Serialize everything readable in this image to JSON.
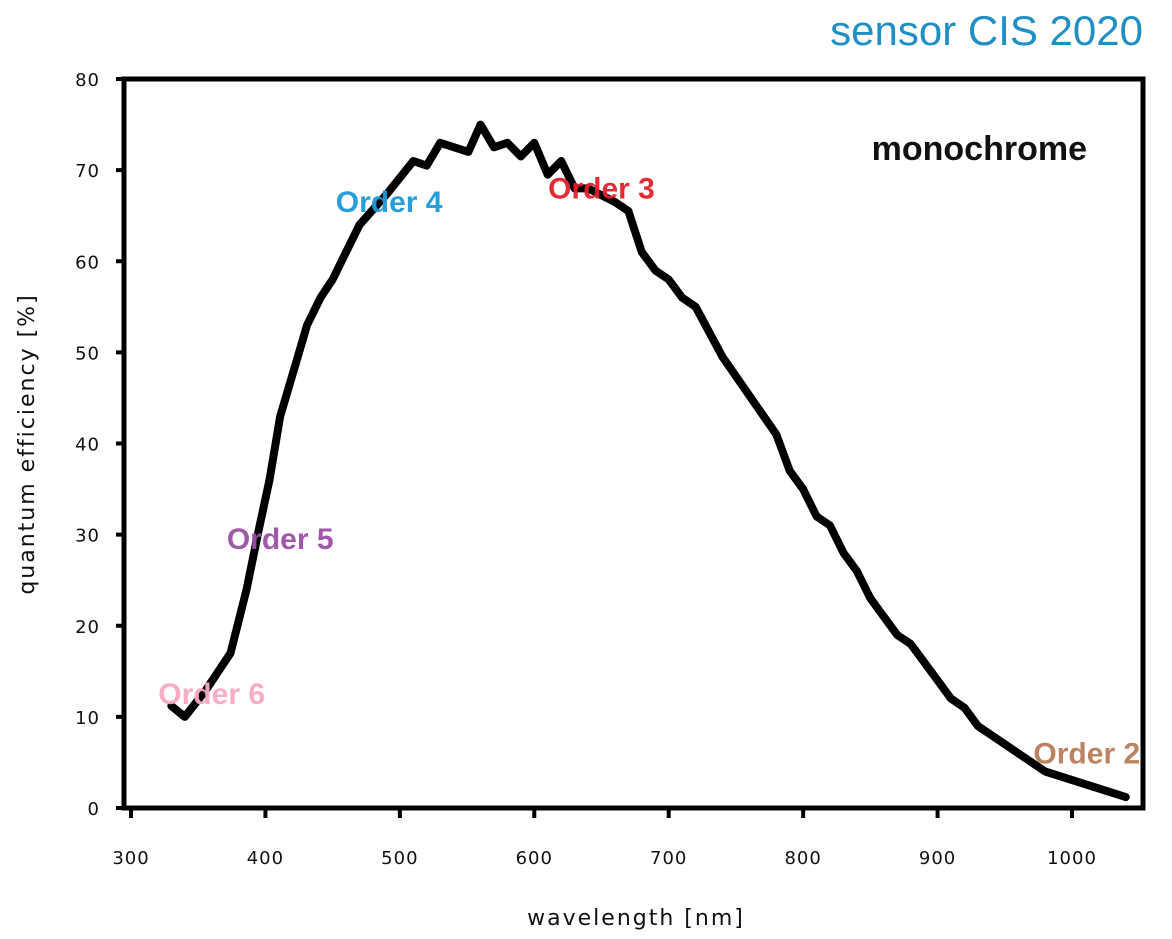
{
  "brand": {
    "text": "sensor CIS 2020",
    "color": "#1f8fc4"
  },
  "chart_data": {
    "type": "line",
    "title": "",
    "subtitle": "monochrome",
    "xlabel": "wavelength [nm]",
    "ylabel": "quantum efficiency [%]",
    "xlim": [
      300,
      1050
    ],
    "ylim": [
      0,
      80
    ],
    "xticks": [
      300,
      400,
      500,
      600,
      700,
      800,
      900,
      1000
    ],
    "yticks": [
      0,
      10,
      20,
      30,
      40,
      50,
      60,
      70,
      80
    ],
    "grid": false,
    "series": [
      {
        "name": "monochrome",
        "color": "#000000",
        "x": [
          330,
          340,
          356,
          374,
          386,
          395,
          403,
          411,
          421,
          431,
          441,
          450,
          470,
          491,
          510,
          520,
          530,
          551,
          560,
          570,
          580,
          590,
          600,
          610,
          620,
          630,
          640,
          660,
          670,
          680,
          690,
          700,
          710,
          720,
          740,
          780,
          790,
          800,
          810,
          820,
          830,
          840,
          850,
          870,
          880,
          900,
          910,
          920,
          930,
          950,
          970,
          980,
          1040
        ],
        "y": [
          11.2,
          10,
          13,
          17,
          24,
          30.5,
          36,
          43,
          48,
          53,
          56,
          58,
          64,
          67.5,
          71,
          70.5,
          73,
          72,
          75,
          72.5,
          73,
          71.5,
          73,
          69.5,
          71,
          68,
          68,
          66.5,
          65.5,
          61,
          59,
          58,
          56,
          55,
          49.5,
          41,
          37,
          35,
          32,
          31,
          28,
          26,
          23,
          19,
          18,
          14,
          12,
          11,
          9,
          7,
          5,
          4,
          1.2
        ]
      }
    ],
    "annotations": [
      {
        "text": "Order 6",
        "x": 360,
        "y": 12.5,
        "color": "#f7a8c4"
      },
      {
        "text": "Order 5",
        "x": 411,
        "y": 29.5,
        "color": "#9b4fa3"
      },
      {
        "text": "Order 4",
        "x": 492,
        "y": 66.5,
        "color": "#1a9ad9"
      },
      {
        "text": "Order 3",
        "x": 650,
        "y": 68,
        "color": "#e0202a"
      },
      {
        "text": "Order 2",
        "x": 1011,
        "y": 6,
        "color": "#b87c5a"
      }
    ]
  }
}
